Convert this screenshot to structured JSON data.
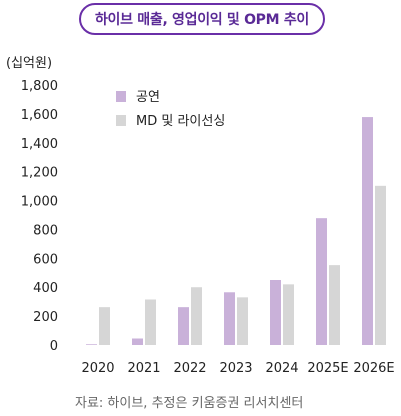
{
  "header": {
    "title": "하이브 매출, 영업이익 및 OPM 추이"
  },
  "chart_data": {
    "type": "bar",
    "unit_label": "(십억원)",
    "categories": [
      "2020",
      "2021",
      "2022",
      "2023",
      "2024",
      "2025E",
      "2026E"
    ],
    "series": [
      {
        "name": "공연",
        "values": [
          5,
          45,
          262,
          365,
          450,
          878,
          1578
        ],
        "color": "#c9b1d9"
      },
      {
        "name": "MD 및 라이선싱",
        "values": [
          262,
          315,
          400,
          330,
          420,
          553,
          1102
        ],
        "color": "#d6d6d6"
      }
    ],
    "y_ticks": [
      "0",
      "200",
      "400",
      "600",
      "800",
      "1,000",
      "1,200",
      "1,400",
      "1,600",
      "1,800"
    ],
    "ylim": [
      0,
      1800
    ],
    "legend_position": "top-left",
    "grid": false
  },
  "source": "자료: 하이브, 추정은 키움증권 리서치센터"
}
